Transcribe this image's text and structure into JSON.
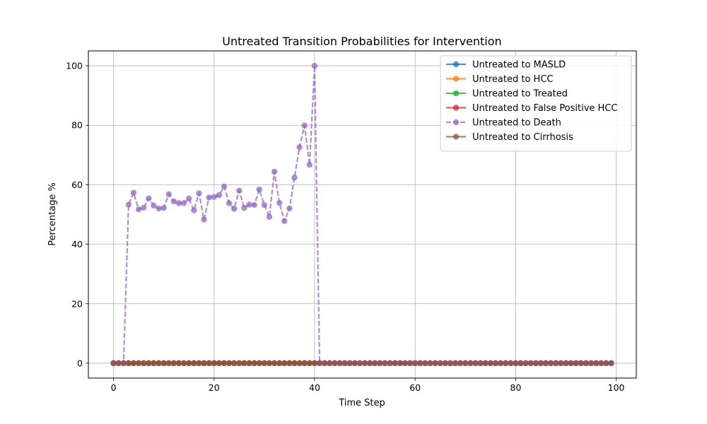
{
  "chart_data": {
    "type": "line",
    "title": "Untreated Transition Probabilities for Intervention",
    "xlabel": "Time Step",
    "ylabel": "Percentage %",
    "xlim": [
      -5,
      104
    ],
    "ylim": [
      -5,
      105
    ],
    "xticks": [
      0,
      20,
      40,
      60,
      80,
      100
    ],
    "yticks": [
      0,
      20,
      40,
      60,
      80,
      100
    ],
    "grid": true,
    "legend_position": "top-right",
    "n_points": 100,
    "series": [
      {
        "name": "Untreated to MASLD",
        "color": "#1f77b4",
        "dashed": false,
        "zero_all": true
      },
      {
        "name": "Untreated to HCC",
        "color": "#ff7f0e",
        "dashed": false,
        "zero_all": true
      },
      {
        "name": "Untreated to Treated",
        "color": "#2ca02c",
        "dashed": false,
        "zero_all": true
      },
      {
        "name": "Untreated to False Positive HCC",
        "color": "#d62728",
        "dashed": false,
        "zero_all": true
      },
      {
        "name": "Untreated to Death",
        "color": "#9467bd",
        "dashed": true,
        "zero_all": false,
        "values_head": [
          0,
          0,
          0,
          53.3,
          57.3,
          51.7,
          52.3,
          55.4,
          53.0,
          52.0,
          52.2,
          56.8,
          54.4,
          53.8,
          53.8,
          55.4,
          51.4,
          57.1,
          48.3,
          55.7,
          55.9,
          56.5,
          59.4,
          53.8,
          51.9,
          58.0,
          52.2,
          53.3,
          53.2,
          58.4,
          53.2,
          49.2,
          64.4,
          53.9,
          47.8,
          52.0,
          62.4,
          72.6,
          79.9,
          66.7,
          100.0
        ],
        "rest_value": 0
      },
      {
        "name": "Untreated to Cirrhosis",
        "color": "#8c564b",
        "dashed": false,
        "zero_all": true
      }
    ]
  }
}
